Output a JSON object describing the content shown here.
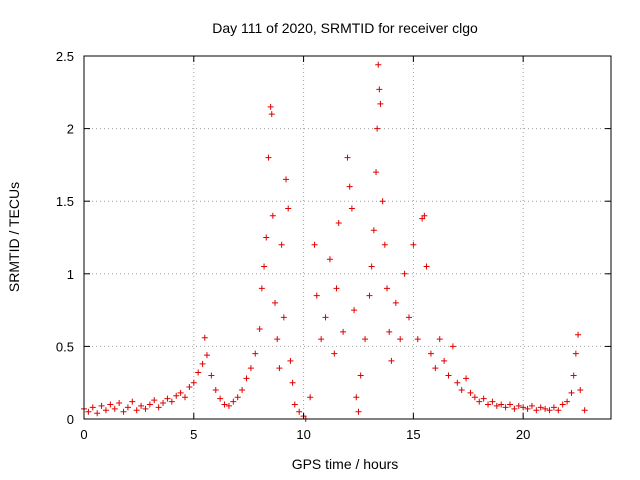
{
  "chart_data": {
    "type": "scatter",
    "title": "Day 111 of 2020, SRMTID for receiver clgo",
    "xlabel": "GPS time / hours",
    "ylabel": "SRMTID / TECUs",
    "xlim": [
      0,
      24
    ],
    "ylim": [
      0,
      2.5
    ],
    "xticks": [
      0,
      5,
      10,
      15,
      20
    ],
    "xtick_labels": [
      "0",
      "5",
      "10",
      "15",
      "20"
    ],
    "yticks": [
      0,
      0.5,
      1,
      1.5,
      2,
      2.5
    ],
    "ytick_labels": [
      "0",
      "0.5",
      "1",
      "1.5",
      "2",
      "2.5"
    ],
    "grid": true,
    "marker": "+",
    "series": [
      {
        "name": "SRMTID",
        "color": "#e00000",
        "points": [
          [
            0.0,
            0.07
          ],
          [
            0.2,
            0.05
          ],
          [
            0.4,
            0.08
          ],
          [
            0.6,
            0.04
          ],
          [
            0.8,
            0.09
          ],
          [
            1.0,
            0.06
          ],
          [
            1.2,
            0.1
          ],
          [
            1.4,
            0.07
          ],
          [
            1.6,
            0.11
          ],
          [
            1.8,
            0.05
          ],
          [
            2.0,
            0.08
          ],
          [
            2.2,
            0.12
          ],
          [
            2.4,
            0.06
          ],
          [
            2.6,
            0.09
          ],
          [
            2.8,
            0.07
          ],
          [
            3.0,
            0.1
          ],
          [
            3.2,
            0.13
          ],
          [
            3.4,
            0.08
          ],
          [
            3.6,
            0.11
          ],
          [
            3.8,
            0.14
          ],
          [
            4.0,
            0.12
          ],
          [
            4.2,
            0.16
          ],
          [
            4.4,
            0.18
          ],
          [
            4.6,
            0.15
          ],
          [
            4.8,
            0.22
          ],
          [
            5.0,
            0.25
          ],
          [
            5.2,
            0.32
          ],
          [
            5.4,
            0.38
          ],
          [
            5.5,
            0.56
          ],
          [
            5.6,
            0.44
          ],
          [
            5.8,
            0.3
          ],
          [
            6.0,
            0.2
          ],
          [
            6.2,
            0.14
          ],
          [
            6.4,
            0.1
          ],
          [
            6.6,
            0.09
          ],
          [
            6.8,
            0.12
          ],
          [
            7.0,
            0.15
          ],
          [
            7.2,
            0.2
          ],
          [
            7.4,
            0.28
          ],
          [
            7.6,
            0.35
          ],
          [
            7.8,
            0.45
          ],
          [
            8.0,
            0.62
          ],
          [
            8.1,
            0.9
          ],
          [
            8.2,
            1.05
          ],
          [
            8.3,
            1.25
          ],
          [
            8.4,
            1.8
          ],
          [
            8.5,
            2.15
          ],
          [
            8.55,
            2.1
          ],
          [
            8.6,
            1.4
          ],
          [
            8.7,
            0.8
          ],
          [
            8.8,
            0.55
          ],
          [
            8.9,
            0.35
          ],
          [
            9.0,
            1.2
          ],
          [
            9.1,
            0.7
          ],
          [
            9.2,
            1.65
          ],
          [
            9.3,
            1.45
          ],
          [
            9.4,
            0.4
          ],
          [
            9.5,
            0.25
          ],
          [
            9.6,
            0.1
          ],
          [
            9.8,
            0.05
          ],
          [
            10.0,
            0.02
          ],
          [
            10.1,
            0.0
          ],
          [
            10.3,
            0.15
          ],
          [
            10.5,
            1.2
          ],
          [
            10.6,
            0.85
          ],
          [
            10.8,
            0.55
          ],
          [
            11.0,
            0.7
          ],
          [
            11.2,
            1.1
          ],
          [
            11.4,
            0.45
          ],
          [
            11.5,
            0.9
          ],
          [
            11.6,
            1.35
          ],
          [
            11.8,
            0.6
          ],
          [
            12.0,
            1.8
          ],
          [
            12.1,
            1.6
          ],
          [
            12.2,
            1.45
          ],
          [
            12.3,
            0.75
          ],
          [
            12.4,
            0.15
          ],
          [
            12.5,
            0.05
          ],
          [
            12.6,
            0.3
          ],
          [
            12.8,
            0.55
          ],
          [
            13.0,
            0.85
          ],
          [
            13.1,
            1.05
          ],
          [
            13.2,
            1.3
          ],
          [
            13.3,
            1.7
          ],
          [
            13.35,
            2.0
          ],
          [
            13.4,
            2.44
          ],
          [
            13.45,
            2.27
          ],
          [
            13.5,
            2.17
          ],
          [
            13.6,
            1.5
          ],
          [
            13.7,
            1.2
          ],
          [
            13.8,
            0.9
          ],
          [
            13.9,
            0.6
          ],
          [
            14.0,
            0.4
          ],
          [
            14.2,
            0.8
          ],
          [
            14.4,
            0.55
          ],
          [
            14.6,
            1.0
          ],
          [
            14.8,
            0.7
          ],
          [
            15.0,
            1.2
          ],
          [
            15.2,
            0.55
          ],
          [
            15.4,
            1.38
          ],
          [
            15.5,
            1.4
          ],
          [
            15.6,
            1.05
          ],
          [
            15.8,
            0.45
          ],
          [
            16.0,
            0.35
          ],
          [
            16.2,
            0.55
          ],
          [
            16.4,
            0.4
          ],
          [
            16.6,
            0.3
          ],
          [
            16.8,
            0.5
          ],
          [
            17.0,
            0.25
          ],
          [
            17.2,
            0.2
          ],
          [
            17.4,
            0.28
          ],
          [
            17.6,
            0.18
          ],
          [
            17.8,
            0.15
          ],
          [
            18.0,
            0.12
          ],
          [
            18.2,
            0.14
          ],
          [
            18.4,
            0.1
          ],
          [
            18.6,
            0.12
          ],
          [
            18.8,
            0.09
          ],
          [
            19.0,
            0.1
          ],
          [
            19.2,
            0.08
          ],
          [
            19.4,
            0.1
          ],
          [
            19.6,
            0.07
          ],
          [
            19.8,
            0.09
          ],
          [
            20.0,
            0.08
          ],
          [
            20.2,
            0.07
          ],
          [
            20.4,
            0.09
          ],
          [
            20.6,
            0.06
          ],
          [
            20.8,
            0.08
          ],
          [
            21.0,
            0.07
          ],
          [
            21.2,
            0.06
          ],
          [
            21.4,
            0.08
          ],
          [
            21.6,
            0.06
          ],
          [
            21.8,
            0.1
          ],
          [
            22.0,
            0.12
          ],
          [
            22.2,
            0.18
          ],
          [
            22.3,
            0.3
          ],
          [
            22.4,
            0.45
          ],
          [
            22.5,
            0.58
          ],
          [
            22.6,
            0.2
          ],
          [
            22.8,
            0.06
          ]
        ]
      }
    ]
  }
}
